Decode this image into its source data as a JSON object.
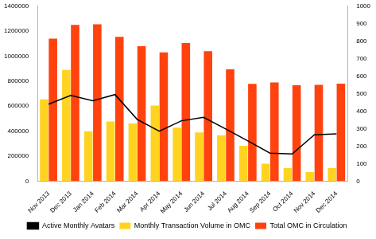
{
  "chart_data": {
    "type": "bar",
    "categories": [
      "Nov 2013",
      "Dec 2013",
      "Jan 2014",
      "Feb 2014",
      "Mar 2014",
      "Apr 2014",
      "May 2014",
      "Jun 2014",
      "Jul 2014",
      "Aug 2014",
      "Sep 2014",
      "Oct 2014",
      "Nov 2014",
      "Dec 2014"
    ],
    "series": [
      {
        "name": "Monthly Transaction Volume in OMC",
        "type": "bar",
        "color": "#ffd320",
        "values": [
          655000,
          890000,
          400000,
          478000,
          461000,
          605000,
          428000,
          389000,
          367000,
          283000,
          139000,
          105000,
          72000,
          105000
        ]
      },
      {
        "name": "Total OMC in Circulation",
        "type": "bar",
        "color": "#ff420e",
        "values": [
          1140000,
          1250000,
          1255000,
          1155000,
          1080000,
          1030000,
          1105000,
          1040000,
          895000,
          778000,
          790000,
          768000,
          770000,
          780000
        ]
      },
      {
        "name": "Active Monthly Avatars",
        "type": "line",
        "color": "#000000",
        "axis": "y2",
        "values": [
          440,
          490,
          460,
          495,
          353,
          286,
          345,
          365,
          298,
          230,
          160,
          155,
          265,
          270
        ]
      }
    ],
    "ylim": [
      0,
      1400000
    ],
    "yticks": [
      0,
      200000,
      400000,
      600000,
      800000,
      1000000,
      1200000,
      1400000
    ],
    "y2lim": [
      0,
      1000
    ],
    "y2ticks": [
      0,
      100,
      200,
      300,
      400,
      500,
      600,
      700,
      800,
      900,
      1000
    ],
    "grid": false,
    "legend": "bottom"
  }
}
